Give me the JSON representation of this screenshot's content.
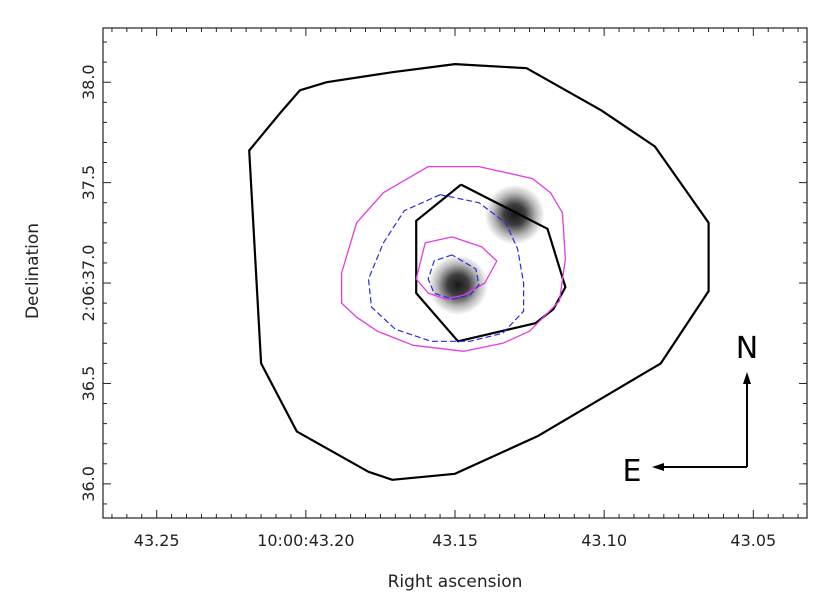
{
  "chart_data": {
    "type": "contour",
    "xlabel": "Right ascension",
    "ylabel": "Declination",
    "x_ticks": [
      {
        "value": 43.25,
        "label": "43.25"
      },
      {
        "value": 43.2,
        "label": "10:00:43.20"
      },
      {
        "value": 43.15,
        "label": "43.15"
      },
      {
        "value": 43.1,
        "label": "43.10"
      },
      {
        "value": 43.05,
        "label": "43.05"
      }
    ],
    "y_ticks": [
      {
        "value": 36.0,
        "label": "36.0"
      },
      {
        "value": 36.5,
        "label": "36.5"
      },
      {
        "value": 37.0,
        "label": "2:06:37.0"
      },
      {
        "value": 37.5,
        "label": "37.5"
      },
      {
        "value": 38.0,
        "label": "38.0"
      }
    ],
    "xlim": [
      43.268,
      43.032
    ],
    "ylim": [
      35.83,
      38.27
    ],
    "x_inverted": true,
    "compass": {
      "north": "N",
      "east": "E"
    },
    "colors": {
      "black": "#000000",
      "magenta": "#e23ce2",
      "blue": "#2b2bdc",
      "frame": "#222222"
    },
    "sources": [
      {
        "ra": 43.149,
        "dec": 36.99,
        "peak": 0.95
      },
      {
        "ra": 43.13,
        "dec": 37.34,
        "peak": 0.95
      }
    ],
    "contours": [
      {
        "color": "black",
        "style": "solid",
        "width": 2.2,
        "points": [
          [
            43.209,
            37.84
          ],
          [
            43.219,
            37.66
          ],
          [
            43.215,
            36.6
          ],
          [
            43.203,
            36.26
          ],
          [
            43.179,
            36.06
          ],
          [
            43.171,
            36.02
          ],
          [
            43.15,
            36.05
          ],
          [
            43.122,
            36.24
          ],
          [
            43.081,
            36.6
          ],
          [
            43.065,
            36.96
          ],
          [
            43.065,
            37.3
          ],
          [
            43.083,
            37.68
          ],
          [
            43.101,
            37.86
          ],
          [
            43.126,
            38.07
          ],
          [
            43.15,
            38.09
          ],
          [
            43.171,
            38.05
          ],
          [
            43.193,
            38.0
          ],
          [
            43.202,
            37.96
          ],
          [
            43.209,
            37.84
          ]
        ]
      },
      {
        "color": "black",
        "style": "solid",
        "width": 2.2,
        "points": [
          [
            43.148,
            37.49
          ],
          [
            43.163,
            37.31
          ],
          [
            43.163,
            36.95
          ],
          [
            43.149,
            36.71
          ],
          [
            43.123,
            36.8
          ],
          [
            43.117,
            36.87
          ],
          [
            43.113,
            36.98
          ],
          [
            43.119,
            37.27
          ],
          [
            43.148,
            37.49
          ]
        ]
      },
      {
        "color": "magenta",
        "style": "solid",
        "width": 1.3,
        "points": [
          [
            43.159,
            37.58
          ],
          [
            43.174,
            37.45
          ],
          [
            43.183,
            37.3
          ],
          [
            43.188,
            37.05
          ],
          [
            43.188,
            36.9
          ],
          [
            43.183,
            36.83
          ],
          [
            43.176,
            36.76
          ],
          [
            43.164,
            36.69
          ],
          [
            43.147,
            36.66
          ],
          [
            43.134,
            36.7
          ],
          [
            43.125,
            36.76
          ],
          [
            43.115,
            36.91
          ],
          [
            43.113,
            37.12
          ],
          [
            43.114,
            37.35
          ],
          [
            43.118,
            37.45
          ],
          [
            43.124,
            37.52
          ],
          [
            43.142,
            37.58
          ],
          [
            43.159,
            37.58
          ]
        ]
      },
      {
        "color": "magenta",
        "style": "solid",
        "width": 1.3,
        "points": [
          [
            43.151,
            37.23
          ],
          [
            43.16,
            37.2
          ],
          [
            43.163,
            37.02
          ],
          [
            43.159,
            36.95
          ],
          [
            43.153,
            36.92
          ],
          [
            43.147,
            36.94
          ],
          [
            43.14,
            37.0
          ],
          [
            43.136,
            37.11
          ],
          [
            43.141,
            37.18
          ],
          [
            43.151,
            37.23
          ]
        ]
      },
      {
        "color": "blue",
        "style": "dashed",
        "width": 1.2,
        "points": [
          [
            43.155,
            37.44
          ],
          [
            43.167,
            37.36
          ],
          [
            43.174,
            37.2
          ],
          [
            43.179,
            37.02
          ],
          [
            43.178,
            36.88
          ],
          [
            43.17,
            36.77
          ],
          [
            43.158,
            36.71
          ],
          [
            43.145,
            36.71
          ],
          [
            43.134,
            36.75
          ],
          [
            43.127,
            36.86
          ],
          [
            43.127,
            37.0
          ],
          [
            43.129,
            37.17
          ],
          [
            43.133,
            37.3
          ],
          [
            43.142,
            37.4
          ],
          [
            43.155,
            37.44
          ]
        ]
      },
      {
        "color": "blue",
        "style": "dashed",
        "width": 1.2,
        "points": [
          [
            43.151,
            37.14
          ],
          [
            43.157,
            37.11
          ],
          [
            43.159,
            37.02
          ],
          [
            43.157,
            36.95
          ],
          [
            43.151,
            36.92
          ],
          [
            43.145,
            36.94
          ],
          [
            43.142,
            36.99
          ],
          [
            43.143,
            37.07
          ],
          [
            43.151,
            37.14
          ]
        ]
      }
    ]
  }
}
